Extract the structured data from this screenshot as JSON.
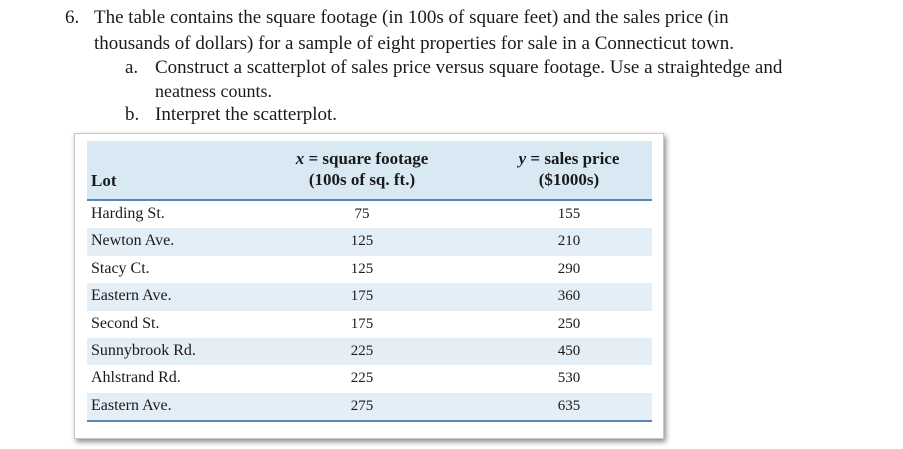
{
  "question": {
    "number": "6.",
    "line1": "The table contains the square footage (in 100s of square feet) and the sales price (in",
    "line2": "thousands of dollars) for a sample of eight properties for sale in a Connecticut town.",
    "part_a_label": "a.",
    "part_a_line1": "Construct a scatterplot of sales price versus square footage.  Use a straightedge and",
    "part_a_line2": "neatness counts.",
    "part_b_label": "b.",
    "part_b_text": "Interpret the scatterplot."
  },
  "table": {
    "header": {
      "lot": "Lot",
      "x_var": "x",
      "x_rest": " = square footage",
      "x_unit": "(100s of sq. ft.)",
      "y_var": "y",
      "y_rest": " = sales price",
      "y_unit": "($1000s)"
    },
    "rows": [
      {
        "lot": "Harding St.",
        "x": "75",
        "y": "155"
      },
      {
        "lot": "Newton Ave.",
        "x": "125",
        "y": "210"
      },
      {
        "lot": "Stacy Ct.",
        "x": "125",
        "y": "290"
      },
      {
        "lot": "Eastern Ave.",
        "x": "175",
        "y": "360"
      },
      {
        "lot": "Second St.",
        "x": "175",
        "y": "250"
      },
      {
        "lot": "Sunnybrook Rd.",
        "x": "225",
        "y": "450"
      },
      {
        "lot": "Ahlstrand Rd.",
        "x": "225",
        "y": "530"
      },
      {
        "lot": "Eastern Ave.",
        "x": "275",
        "y": "635"
      }
    ]
  }
}
